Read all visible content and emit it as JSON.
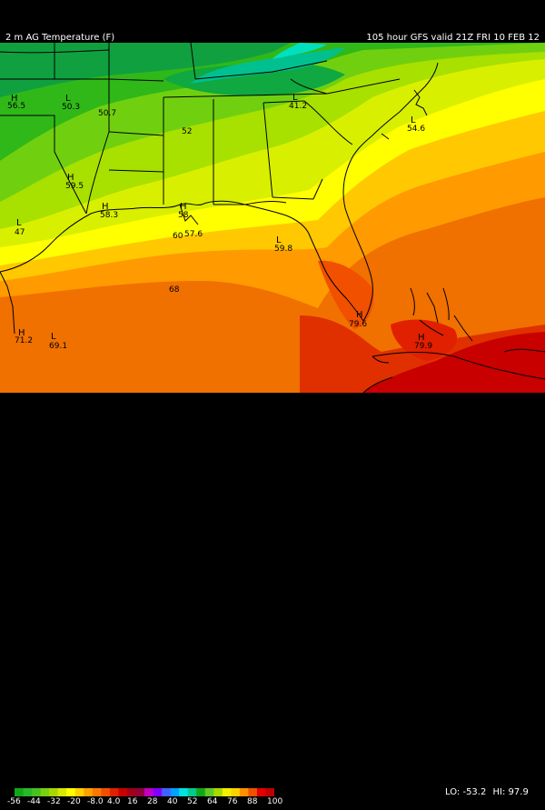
{
  "header": {
    "title_left": "2 m AG Temperature (F)",
    "title_right": "105 hour GFS valid 21Z FRI 10 FEB 12"
  },
  "legend": {
    "tick_labels": [
      "-56",
      "-44",
      "-32",
      "-20",
      "-8.0",
      "4.0",
      "16",
      "28",
      "40",
      "52",
      "64",
      "76",
      "88",
      "100"
    ],
    "colors": [
      "#10a818",
      "#28b828",
      "#48c020",
      "#78d010",
      "#a8d800",
      "#d8e800",
      "#ffff00",
      "#ffd000",
      "#ffa000",
      "#ff7800",
      "#f05000",
      "#e02000",
      "#c80000",
      "#a00018",
      "#900038",
      "#c000c0",
      "#8000ff",
      "#4060ff",
      "#00a0ff",
      "#00e0e0",
      "#00c890",
      "#10a818",
      "#60c828",
      "#a8d800",
      "#f0f000",
      "#ffd000",
      "#ff9000",
      "#f05000",
      "#e00000",
      "#c00000"
    ]
  },
  "stats": {
    "lo": "LO: -53.2",
    "hi": "HI: 97.9"
  },
  "map": {
    "labels": [
      {
        "id": "h1",
        "text": "H"
      },
      {
        "id": "v1",
        "text": "56.5"
      },
      {
        "id": "l1",
        "text": "L"
      },
      {
        "id": "v2",
        "text": "50.3"
      },
      {
        "id": "v3",
        "text": "50.7"
      },
      {
        "id": "v4",
        "text": "52"
      },
      {
        "id": "l2",
        "text": "L"
      },
      {
        "id": "v5",
        "text": "41.2"
      },
      {
        "id": "l3",
        "text": "L"
      },
      {
        "id": "v6",
        "text": "54.6"
      },
      {
        "id": "h2",
        "text": "H"
      },
      {
        "id": "v7",
        "text": "59.5"
      },
      {
        "id": "h3",
        "text": "H"
      },
      {
        "id": "v8",
        "text": "58.3"
      },
      {
        "id": "h4",
        "text": "H"
      },
      {
        "id": "v9",
        "text": "58"
      },
      {
        "id": "v10",
        "text": "60"
      },
      {
        "id": "v11",
        "text": "57.6"
      },
      {
        "id": "l4",
        "text": "L"
      },
      {
        "id": "v12",
        "text": "47"
      },
      {
        "id": "l5",
        "text": "L"
      },
      {
        "id": "v13",
        "text": "59.8"
      },
      {
        "id": "v14",
        "text": "68"
      },
      {
        "id": "h5",
        "text": "H"
      },
      {
        "id": "v15",
        "text": "71.2"
      },
      {
        "id": "l6",
        "text": "L"
      },
      {
        "id": "v16",
        "text": "69.1"
      },
      {
        "id": "h6",
        "text": "H"
      },
      {
        "id": "v17",
        "text": "79.6"
      },
      {
        "id": "h7",
        "text": "H"
      },
      {
        "id": "v18",
        "text": "79.9"
      }
    ]
  }
}
